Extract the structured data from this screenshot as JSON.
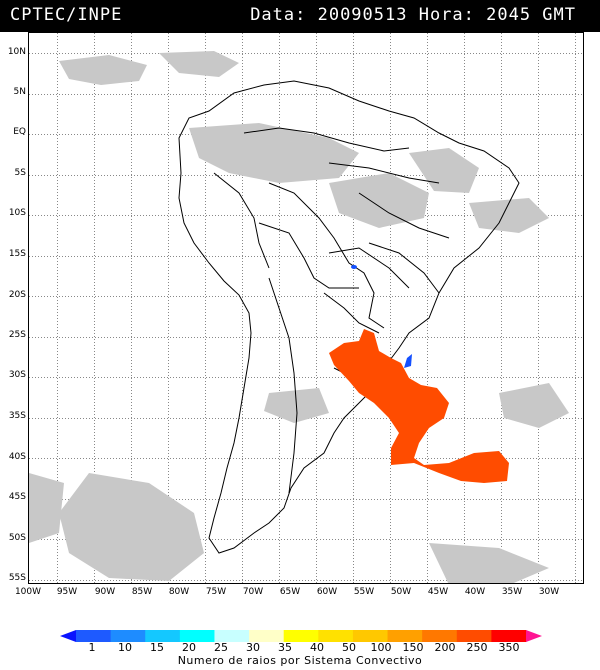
{
  "header": {
    "source": "CPTEC/INPE",
    "timestamp": "Data: 20090513 Hora: 2045 GMT"
  },
  "map": {
    "latitude_labels": [
      "10N",
      "5N",
      "EQ",
      "5S",
      "10S",
      "15S",
      "20S",
      "25S",
      "30S",
      "35S",
      "40S",
      "45S",
      "50S",
      "55S"
    ],
    "longitude_labels": [
      "100W",
      "95W",
      "90W",
      "85W",
      "80W",
      "75W",
      "70W",
      "65W",
      "60W",
      "55W",
      "50W",
      "45W",
      "40W",
      "35W",
      "30W"
    ],
    "colors": {
      "cloud_gray": "#c8c8c8",
      "convective_system": "#ff4c00",
      "lightning_blue": "#1450ff",
      "borders": "#000000"
    }
  },
  "legend": {
    "title": "Numero de raios por Sistema Convectivo",
    "ticks": [
      "1",
      "10",
      "15",
      "20",
      "25",
      "30",
      "35",
      "40",
      "50",
      "100",
      "150",
      "200",
      "250",
      "350"
    ],
    "colors": [
      "#0a14ff",
      "#1e5aff",
      "#1e8cff",
      "#14c8ff",
      "#00ffff",
      "#c8ffff",
      "#ffffc8",
      "#ffff00",
      "#ffe100",
      "#ffc800",
      "#ffa000",
      "#ff7800",
      "#ff4c00",
      "#ff0000",
      "#ff1493"
    ]
  }
}
